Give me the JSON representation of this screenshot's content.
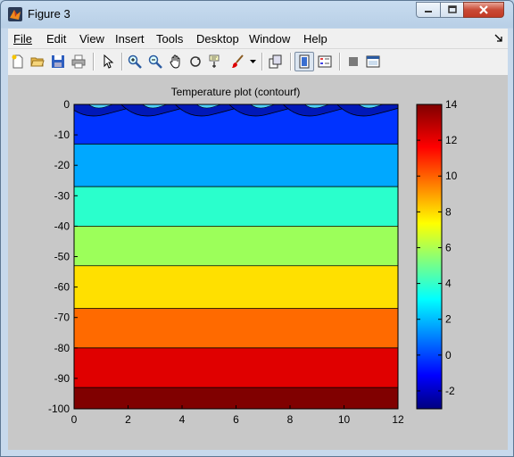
{
  "window": {
    "title": "Figure 3"
  },
  "menu": {
    "items": [
      "File",
      "Edit",
      "View",
      "Insert",
      "Tools",
      "Desktop",
      "Window",
      "Help"
    ]
  },
  "toolbar": {
    "buttons": [
      "new-figure",
      "open-file",
      "save-figure",
      "print-figure",
      "edit-plot-arrow",
      "zoom-in",
      "zoom-out",
      "pan",
      "rotate-3d",
      "data-cursor",
      "brush",
      "brush-options",
      "link-plot",
      "hide-plot-tools",
      "show-plot-tools",
      "insert-colorbar",
      "insert-legend"
    ]
  },
  "colors": {
    "axes_bg": "#c8c8c8",
    "frame_blue": "#b8cfe6"
  },
  "chart_data": {
    "type": "heatmap",
    "title": "Temperature plot (contourf)",
    "xlabel": "",
    "ylabel": "",
    "xlim": [
      0,
      12
    ],
    "ylim": [
      -100,
      0
    ],
    "x_ticks": [
      "0",
      "2",
      "4",
      "6",
      "8",
      "10",
      "12"
    ],
    "y_ticks": [
      "0",
      "-10",
      "-20",
      "-30",
      "-40",
      "-50",
      "-60",
      "-70",
      "-80",
      "-90",
      "-100"
    ],
    "contour_levels": [
      -4,
      -2,
      0,
      2,
      4,
      6,
      8,
      10,
      12,
      14
    ],
    "bands": [
      {
        "depth_top": 0,
        "depth_bottom": -13,
        "color": "#0033ff"
      },
      {
        "depth_top": -13,
        "depth_bottom": -27,
        "color": "#00a8ff"
      },
      {
        "depth_top": -27,
        "depth_bottom": -40,
        "color": "#2affcc"
      },
      {
        "depth_top": -40,
        "depth_bottom": -53,
        "color": "#9cff5a"
      },
      {
        "depth_top": -53,
        "depth_bottom": -67,
        "color": "#ffe000"
      },
      {
        "depth_top": -67,
        "depth_bottom": -80,
        "color": "#ff6a00"
      },
      {
        "depth_top": -80,
        "depth_bottom": -93,
        "color": "#e00000"
      },
      {
        "depth_top": -93,
        "depth_bottom": -100,
        "color": "#800000"
      }
    ],
    "surface_pockets_x": [
      1,
      3,
      5,
      7,
      9,
      11
    ],
    "colorbar": {
      "lim": [
        -3,
        14
      ],
      "tick_labels": [
        "14",
        "12",
        "10",
        "8",
        "6",
        "4",
        "2",
        "0",
        "-2"
      ],
      "tick_values": [
        14,
        12,
        10,
        8,
        6,
        4,
        2,
        0,
        -2
      ]
    }
  }
}
